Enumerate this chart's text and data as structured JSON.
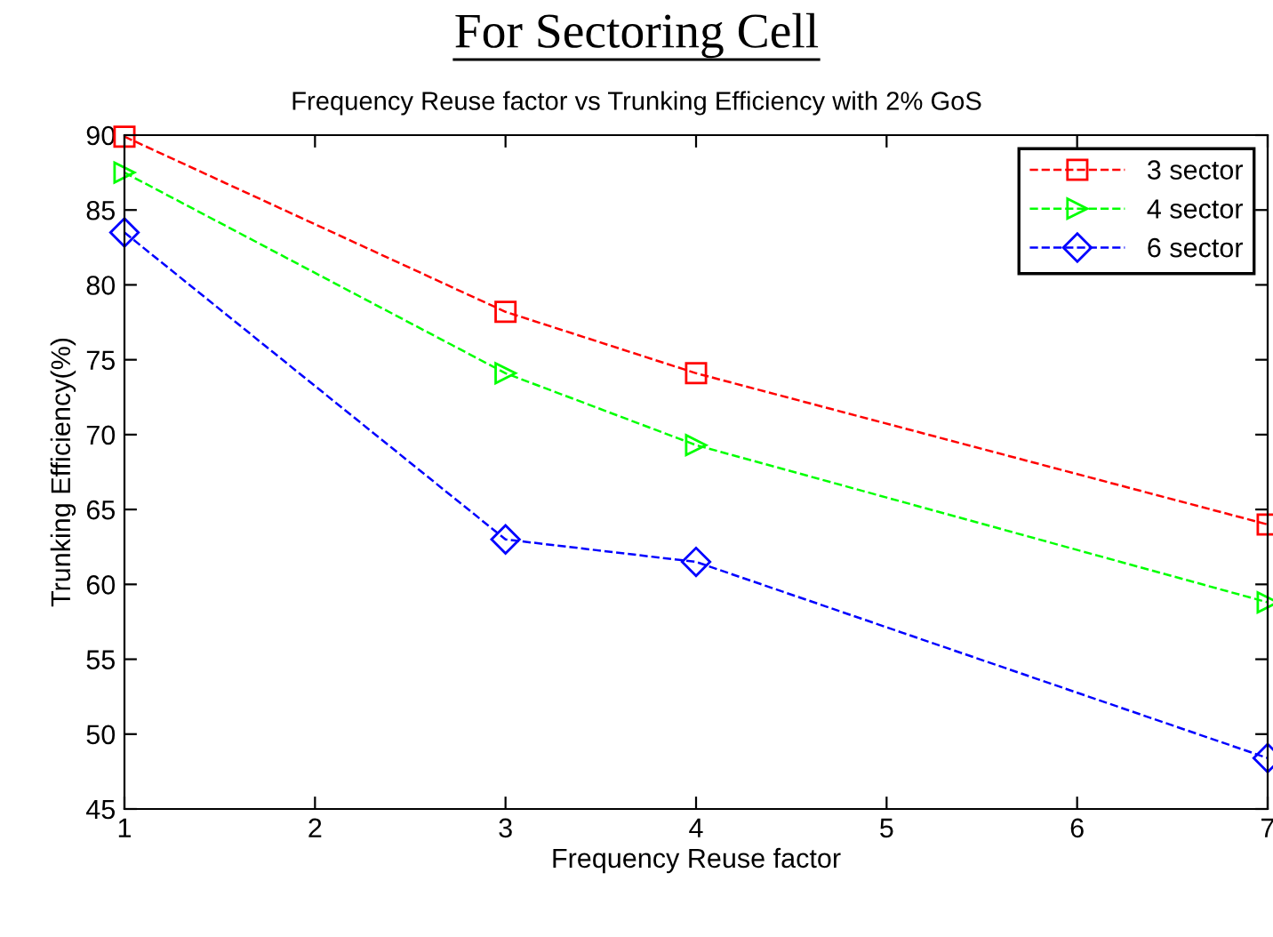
{
  "chart_data": {
    "type": "line",
    "title": "For Sectoring Cell",
    "subtitle": "Frequency Reuse factor vs Trunking Efficiency with 2% GoS",
    "xlabel": "Frequency Reuse factor",
    "ylabel": "Trunking Efficiency(%)",
    "x": [
      1,
      3,
      4,
      7
    ],
    "series": [
      {
        "name": "3 sector",
        "color": "#ff0000",
        "marker": "square",
        "values": [
          89.9,
          78.2,
          74.1,
          64.0
        ]
      },
      {
        "name": "4 sector",
        "color": "#00ff00",
        "marker": "triangle",
        "values": [
          87.5,
          74.1,
          69.3,
          58.8
        ]
      },
      {
        "name": "6 sector",
        "color": "#0000ff",
        "marker": "diamond",
        "values": [
          83.5,
          63.0,
          61.5,
          48.4
        ]
      }
    ],
    "line_style": "dashed",
    "xlim": [
      1,
      7
    ],
    "xticks": [
      1,
      2,
      3,
      4,
      5,
      6,
      7
    ],
    "ylim": [
      45,
      90
    ],
    "yticks": [
      45,
      50,
      55,
      60,
      65,
      70,
      75,
      80,
      85,
      90
    ],
    "grid": false,
    "legend": "top right"
  }
}
